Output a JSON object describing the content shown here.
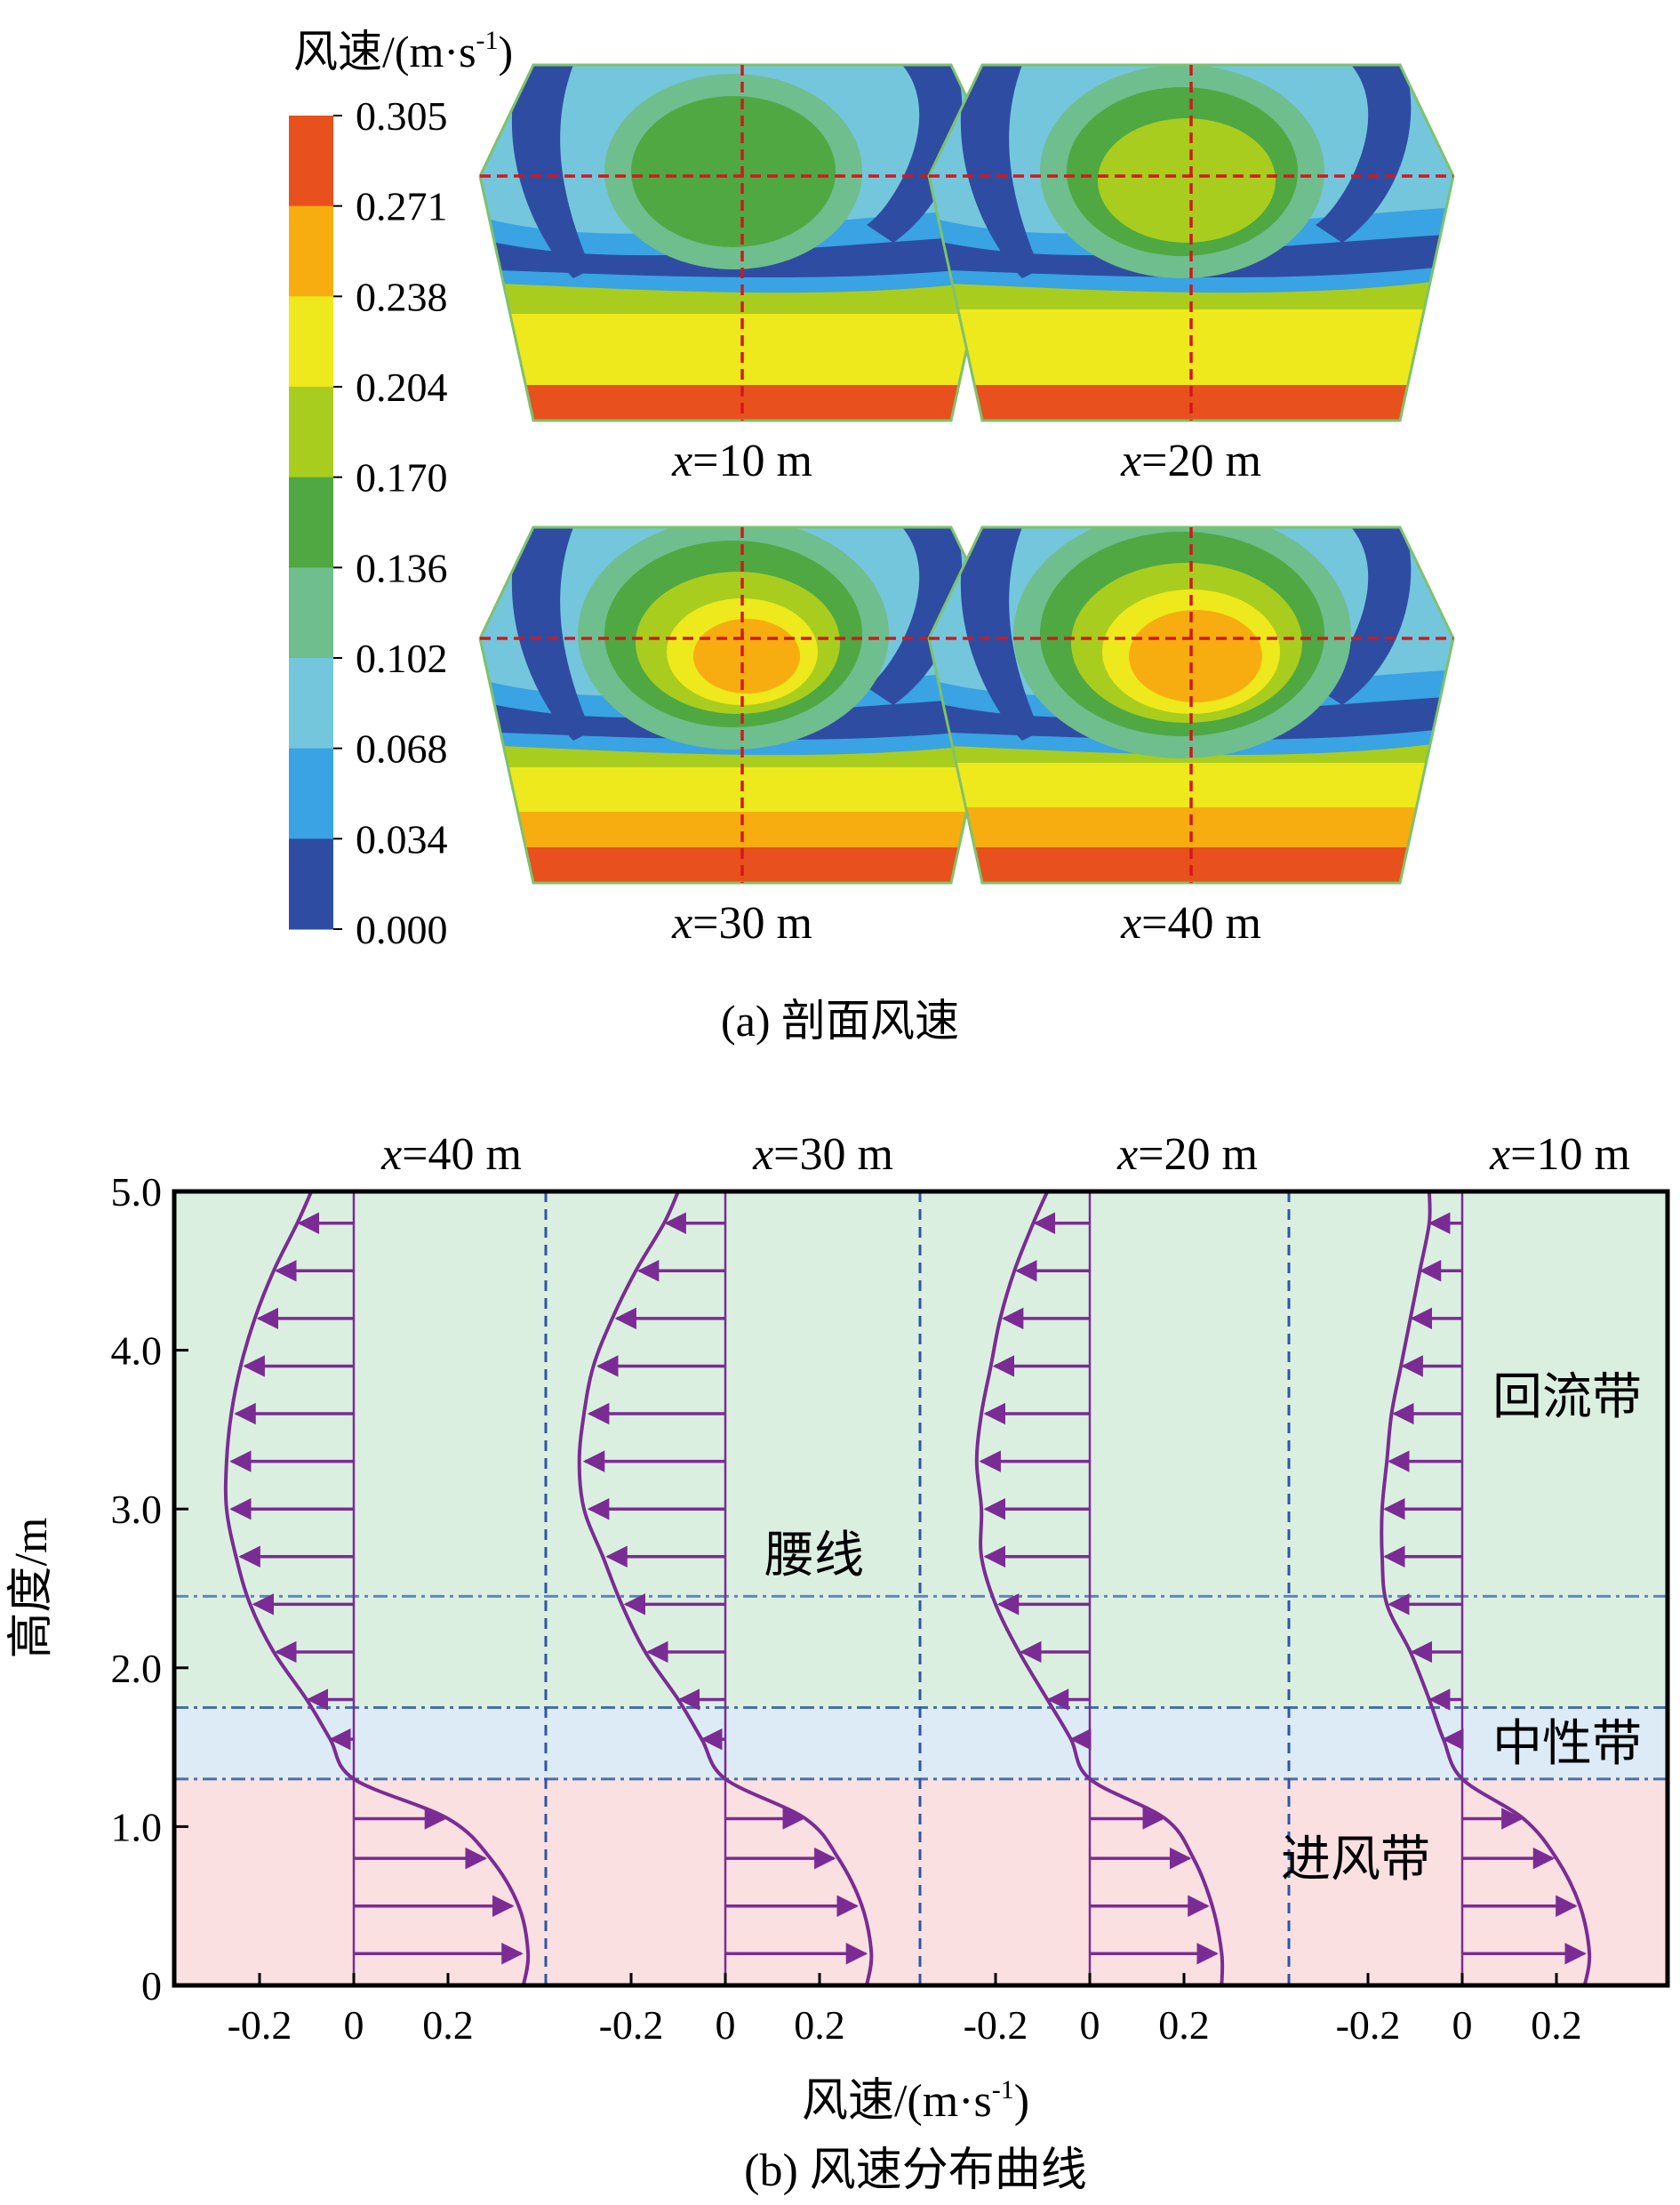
{
  "colorbar": {
    "title": "风速/(m·s",
    "title_sup": "-1",
    "title_end": ")",
    "levels": [
      "0.305",
      "0.271",
      "0.238",
      "0.204",
      "0.170",
      "0.136",
      "0.102",
      "0.068",
      "0.034",
      "0.000"
    ],
    "colors": [
      "#e8501e",
      "#f7ad0f",
      "#eee91c",
      "#a9cd1e",
      "#4fa842",
      "#6fbe8d",
      "#74c6dc",
      "#39a3e3",
      "#2e4da2"
    ]
  },
  "panel_a": {
    "caption": "(a) 剖面风速",
    "sections": [
      {
        "x_var": "x",
        "x_val": "=10 m",
        "level": 1
      },
      {
        "x_var": "x",
        "x_val": "=20 m",
        "level": 2
      },
      {
        "x_var": "x",
        "x_val": "=30 m",
        "level": 3
      },
      {
        "x_var": "x",
        "x_val": "=40 m",
        "level": 4
      }
    ]
  },
  "panel_b": {
    "caption": "(b) 风速分布曲线",
    "xlabel": "风速/(m·s",
    "xlabel_sup": "-1",
    "xlabel_end": ")",
    "ylabel": "高度/m",
    "zones": [
      {
        "label": "回流带",
        "y_from": 1.75,
        "y_to": 5.0,
        "color": "#dbefe1"
      },
      {
        "label": "中性带",
        "y_from": 1.3,
        "y_to": 1.75,
        "color": "#ddebf7"
      },
      {
        "label": "进风带",
        "y_from": 0.0,
        "y_to": 1.3,
        "color": "#fbe0e2"
      }
    ],
    "waist_label": "腰线",
    "waist_height": 2.45
  },
  "chart_data": {
    "type": "line",
    "ylim": [
      0,
      5.0
    ],
    "yticks": [
      "0",
      "1.0",
      "2.0",
      "3.0",
      "4.0",
      "5.0"
    ],
    "xticks": [
      "-0.2",
      "0",
      "0.2"
    ],
    "xlim_each": [
      -0.37,
      0.4
    ],
    "series": [
      {
        "name": "x=40 m",
        "x_var": "x",
        "x_val": "=40 m",
        "y": [
          0,
          0.2,
          0.5,
          0.8,
          1.05,
          1.3,
          1.55,
          1.8,
          2.1,
          2.4,
          2.7,
          3.0,
          3.3,
          3.6,
          3.9,
          4.2,
          4.5,
          4.8,
          5.0
        ],
        "v": [
          0.36,
          0.37,
          0.35,
          0.29,
          0.2,
          0.0,
          -0.05,
          -0.1,
          -0.17,
          -0.22,
          -0.25,
          -0.27,
          -0.27,
          -0.26,
          -0.24,
          -0.21,
          -0.17,
          -0.12,
          -0.09
        ]
      },
      {
        "name": "x=30 m",
        "x_var": "x",
        "x_val": "=30 m",
        "y": [
          0,
          0.2,
          0.5,
          0.8,
          1.05,
          1.3,
          1.55,
          1.8,
          2.1,
          2.4,
          2.7,
          3.0,
          3.3,
          3.6,
          3.9,
          4.2,
          4.5,
          4.8,
          5.0
        ],
        "v": [
          0.3,
          0.31,
          0.29,
          0.24,
          0.17,
          0.0,
          -0.05,
          -0.1,
          -0.17,
          -0.22,
          -0.26,
          -0.3,
          -0.31,
          -0.3,
          -0.28,
          -0.24,
          -0.19,
          -0.13,
          -0.1
        ]
      },
      {
        "name": "x=20 m",
        "x_var": "x",
        "x_val": "=20 m",
        "y": [
          0,
          0.2,
          0.5,
          0.8,
          1.05,
          1.3,
          1.55,
          1.8,
          2.1,
          2.4,
          2.7,
          3.0,
          3.3,
          3.6,
          3.9,
          4.2,
          4.5,
          4.8,
          5.0
        ],
        "v": [
          0.28,
          0.28,
          0.26,
          0.22,
          0.16,
          0.0,
          -0.04,
          -0.09,
          -0.15,
          -0.2,
          -0.23,
          -0.23,
          -0.24,
          -0.23,
          -0.21,
          -0.19,
          -0.16,
          -0.12,
          -0.09
        ]
      },
      {
        "name": "x=10 m",
        "x_var": "x",
        "x_val": "=10 m",
        "y": [
          0,
          0.2,
          0.5,
          0.8,
          1.05,
          1.3,
          1.55,
          1.8,
          2.1,
          2.4,
          2.7,
          3.0,
          3.3,
          3.6,
          3.9,
          4.2,
          4.5,
          4.8,
          5.0
        ],
        "v": [
          0.26,
          0.27,
          0.25,
          0.2,
          0.13,
          0.0,
          -0.04,
          -0.07,
          -0.11,
          -0.16,
          -0.17,
          -0.17,
          -0.16,
          -0.15,
          -0.13,
          -0.11,
          -0.09,
          -0.07,
          -0.07
        ]
      }
    ]
  }
}
